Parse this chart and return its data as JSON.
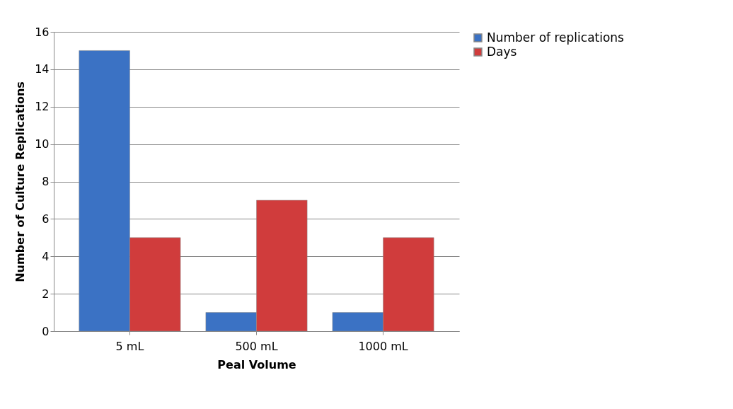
{
  "chart_data": {
    "type": "bar",
    "xlabel": "Peal Volume",
    "ylabel": "Number of Culture Replications",
    "categories": [
      "5 mL",
      "500 mL",
      "1000 mL"
    ],
    "series": [
      {
        "name": "Number of replications",
        "color": "#3b72c4",
        "values": [
          15,
          1,
          1
        ]
      },
      {
        "name": "Days",
        "color": "#d03c3c",
        "values": [
          5,
          7,
          5
        ]
      }
    ],
    "ylim": [
      0,
      16
    ],
    "yticks": [
      0,
      2,
      4,
      6,
      8,
      10,
      12,
      14,
      16
    ],
    "grid": "y",
    "legend": "right"
  }
}
